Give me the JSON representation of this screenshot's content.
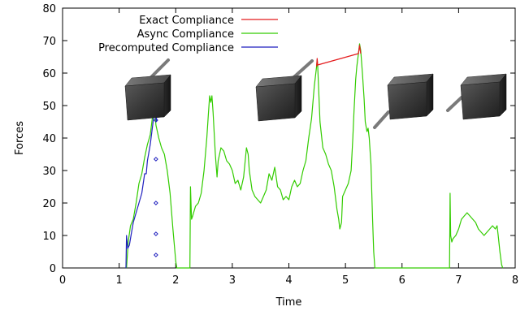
{
  "chart_data": {
    "type": "line",
    "title": "",
    "xlabel": "Time",
    "ylabel": "Forces",
    "xlim": [
      0,
      8
    ],
    "ylim": [
      0,
      80
    ],
    "xticks": [
      0,
      1,
      2,
      3,
      4,
      5,
      6,
      7,
      8
    ],
    "yticks": [
      0,
      10,
      20,
      30,
      40,
      50,
      60,
      70,
      80
    ],
    "grid": false,
    "legend_position": "top-left",
    "series": [
      {
        "name": "Exact Compliance",
        "color": "#e41a1c",
        "points": [
          [
            4.49,
            62
          ],
          [
            4.5,
            64.5
          ],
          [
            4.51,
            62.5
          ],
          [
            5.23,
            66
          ],
          [
            5.25,
            68.5
          ],
          [
            5.27,
            66
          ]
        ]
      },
      {
        "name": "Async Compliance",
        "color": "#33cc00",
        "points": [
          [
            1.13,
            0
          ],
          [
            1.16,
            8
          ],
          [
            1.2,
            13
          ],
          [
            1.25,
            15
          ],
          [
            1.3,
            20
          ],
          [
            1.35,
            26
          ],
          [
            1.4,
            29
          ],
          [
            1.45,
            34
          ],
          [
            1.5,
            38
          ],
          [
            1.55,
            41
          ],
          [
            1.6,
            48
          ],
          [
            1.62,
            51
          ],
          [
            1.65,
            44
          ],
          [
            1.7,
            40
          ],
          [
            1.75,
            37
          ],
          [
            1.8,
            35
          ],
          [
            1.85,
            30
          ],
          [
            1.9,
            23
          ],
          [
            1.95,
            12
          ],
          [
            2.0,
            2
          ],
          [
            2.02,
            0
          ],
          [
            2.25,
            0
          ],
          [
            2.26,
            25
          ],
          [
            2.28,
            15
          ],
          [
            2.3,
            16
          ],
          [
            2.35,
            19
          ],
          [
            2.4,
            20
          ],
          [
            2.45,
            23
          ],
          [
            2.5,
            30
          ],
          [
            2.55,
            40
          ],
          [
            2.58,
            48
          ],
          [
            2.6,
            53
          ],
          [
            2.62,
            51
          ],
          [
            2.64,
            53
          ],
          [
            2.66,
            48
          ],
          [
            2.7,
            35
          ],
          [
            2.73,
            28
          ],
          [
            2.75,
            33
          ],
          [
            2.8,
            37
          ],
          [
            2.85,
            36
          ],
          [
            2.9,
            33
          ],
          [
            2.95,
            32
          ],
          [
            3.0,
            30
          ],
          [
            3.05,
            26
          ],
          [
            3.1,
            27
          ],
          [
            3.15,
            24
          ],
          [
            3.2,
            28
          ],
          [
            3.25,
            37
          ],
          [
            3.28,
            35
          ],
          [
            3.3,
            30
          ],
          [
            3.35,
            24
          ],
          [
            3.4,
            22
          ],
          [
            3.45,
            21
          ],
          [
            3.5,
            20
          ],
          [
            3.55,
            22
          ],
          [
            3.6,
            24
          ],
          [
            3.65,
            29
          ],
          [
            3.7,
            27
          ],
          [
            3.75,
            31
          ],
          [
            3.8,
            25
          ],
          [
            3.85,
            24
          ],
          [
            3.9,
            21
          ],
          [
            3.95,
            22
          ],
          [
            4.0,
            21
          ],
          [
            4.05,
            25
          ],
          [
            4.1,
            27
          ],
          [
            4.15,
            25
          ],
          [
            4.2,
            26
          ],
          [
            4.25,
            30
          ],
          [
            4.3,
            33
          ],
          [
            4.35,
            40
          ],
          [
            4.4,
            46
          ],
          [
            4.45,
            56
          ],
          [
            4.49,
            62
          ],
          [
            4.5,
            64
          ],
          [
            4.51,
            62
          ],
          [
            4.55,
            45
          ],
          [
            4.6,
            37
          ],
          [
            4.65,
            35
          ],
          [
            4.7,
            32
          ],
          [
            4.75,
            30
          ],
          [
            4.8,
            25
          ],
          [
            4.85,
            18
          ],
          [
            4.88,
            15
          ],
          [
            4.9,
            12
          ],
          [
            4.93,
            14
          ],
          [
            4.95,
            22
          ],
          [
            5.0,
            24
          ],
          [
            5.05,
            26
          ],
          [
            5.1,
            30
          ],
          [
            5.13,
            40
          ],
          [
            5.15,
            48
          ],
          [
            5.18,
            58
          ],
          [
            5.2,
            62
          ],
          [
            5.23,
            66
          ],
          [
            5.25,
            69
          ],
          [
            5.27,
            67
          ],
          [
            5.3,
            60
          ],
          [
            5.33,
            52
          ],
          [
            5.35,
            45
          ],
          [
            5.38,
            42
          ],
          [
            5.4,
            43
          ],
          [
            5.42,
            40
          ],
          [
            5.45,
            32
          ],
          [
            5.48,
            15
          ],
          [
            5.5,
            5
          ],
          [
            5.52,
            0
          ],
          [
            6.84,
            0
          ],
          [
            6.85,
            23
          ],
          [
            6.86,
            10
          ],
          [
            6.88,
            8
          ],
          [
            6.9,
            9
          ],
          [
            6.95,
            10
          ],
          [
            7.0,
            12
          ],
          [
            7.05,
            15
          ],
          [
            7.1,
            16
          ],
          [
            7.15,
            17
          ],
          [
            7.2,
            16
          ],
          [
            7.25,
            15
          ],
          [
            7.3,
            14
          ],
          [
            7.35,
            12
          ],
          [
            7.4,
            11
          ],
          [
            7.45,
            10
          ],
          [
            7.5,
            11
          ],
          [
            7.55,
            12
          ],
          [
            7.6,
            13
          ],
          [
            7.65,
            12
          ],
          [
            7.68,
            13
          ],
          [
            7.7,
            10
          ],
          [
            7.73,
            5
          ],
          [
            7.76,
            1
          ],
          [
            7.78,
            0
          ]
        ]
      },
      {
        "name": "Precomputed Compliance",
        "color": "#1f1fbf",
        "points": [
          [
            1.12,
            0
          ],
          [
            1.13,
            10
          ],
          [
            1.15,
            6
          ],
          [
            1.18,
            7
          ],
          [
            1.22,
            11
          ],
          [
            1.25,
            14
          ],
          [
            1.3,
            17
          ],
          [
            1.35,
            20
          ],
          [
            1.4,
            23
          ],
          [
            1.45,
            29
          ],
          [
            1.48,
            29
          ],
          [
            1.5,
            33
          ],
          [
            1.55,
            38
          ],
          [
            1.6,
            45
          ],
          [
            1.63,
            50
          ],
          [
            1.65,
            55
          ],
          [
            1.66,
            45
          ]
        ],
        "markers": [
          [
            1.65,
            4
          ],
          [
            1.65,
            10.5
          ],
          [
            1.65,
            20
          ],
          [
            1.65,
            33.5
          ],
          [
            1.65,
            45.5
          ],
          [
            1.65,
            55
          ]
        ]
      }
    ],
    "legend": [
      {
        "label": "Exact Compliance",
        "color": "#e41a1c"
      },
      {
        "label": "Async Compliance",
        "color": "#33cc00"
      },
      {
        "label": "Precomputed Compliance",
        "color": "#1f1fbf"
      }
    ],
    "annotation_images": [
      {
        "name": "deformed-cube-1",
        "points_to": [
          1.65,
          55
        ]
      },
      {
        "name": "deformed-cube-2",
        "points_to": [
          4.5,
          64
        ]
      },
      {
        "name": "deformed-cube-3",
        "points_to": [
          5.45,
          42
        ]
      },
      {
        "name": "deformed-cube-4",
        "points_to": [
          7.0,
          48
        ]
      }
    ]
  }
}
